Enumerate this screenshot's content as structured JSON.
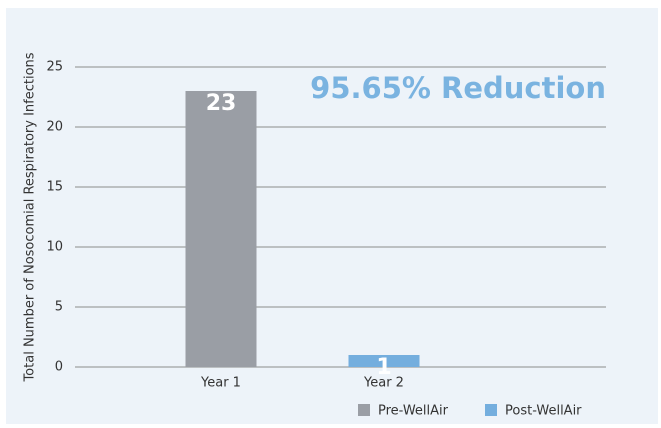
{
  "chart_data": {
    "type": "bar",
    "annotation": "95.65% Reduction",
    "y_label": "Total Number of Nosocomial Respiratory Infections",
    "categories": [
      "Year 1",
      "Year 2"
    ],
    "series": [
      {
        "name": "Pre-WellAir",
        "color": "#9a9ea5",
        "values": [
          23,
          null
        ]
      },
      {
        "name": "Post-WellAir",
        "color": "#74aede",
        "values": [
          null,
          1
        ]
      }
    ],
    "ylim": [
      0,
      25
    ],
    "yticks": [
      0,
      5,
      10,
      15,
      20,
      25
    ],
    "grid": true,
    "legend": "bottom-right"
  }
}
